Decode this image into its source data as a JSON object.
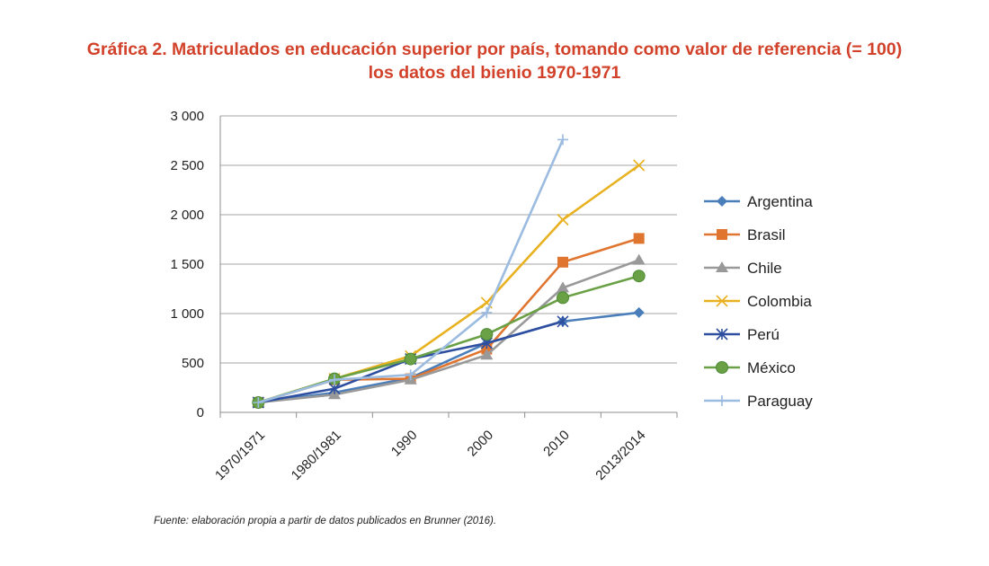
{
  "title_line1": "Gráfica 2. Matriculados en educación superior por país, tomando como valor de referencia (= 100)",
  "title_line2": "los datos del bienio 1970-1971",
  "footnote": "Fuente: elaboración propia a partir de datos publicados en Brunner (2016).",
  "chart_data": {
    "type": "line",
    "title": "Gráfica 2. Matriculados en educación superior por país, tomando como valor de referencia (= 100) los datos del bienio 1970-1971",
    "xlabel": "",
    "ylabel": "",
    "categories": [
      "1970/1971",
      "1980/1981",
      "1990",
      "2000",
      "2010",
      "2013/2014"
    ],
    "ylim": [
      0,
      3000
    ],
    "yticks": [
      0,
      500,
      1000,
      1500,
      2000,
      2500,
      3000
    ],
    "ytick_labels": [
      "0",
      "500",
      "1 000",
      "1 500",
      "2 000",
      "2 500",
      "3 000"
    ],
    "grid": true,
    "legend_position": "right",
    "series": [
      {
        "name": "Argentina",
        "color": "#4a7ebb",
        "marker": "diamond",
        "values": [
          100,
          200,
          350,
          700,
          920,
          1010
        ]
      },
      {
        "name": "Brasil",
        "color": "#e07530",
        "marker": "square",
        "values": [
          100,
          330,
          340,
          640,
          1520,
          1760
        ]
      },
      {
        "name": "Chile",
        "color": "#999999",
        "marker": "triangle",
        "values": [
          100,
          180,
          330,
          580,
          1260,
          1540
        ]
      },
      {
        "name": "Colombia",
        "color": "#e8b120",
        "marker": "x",
        "values": [
          100,
          340,
          570,
          1110,
          1950,
          2500
        ]
      },
      {
        "name": "Perú",
        "color": "#2e4fa0",
        "marker": "star",
        "values": [
          100,
          240,
          540,
          700,
          920,
          null
        ]
      },
      {
        "name": "México",
        "color": "#6aa046",
        "marker": "circle",
        "values": [
          100,
          340,
          540,
          790,
          1160,
          1380
        ]
      },
      {
        "name": "Paraguay",
        "color": "#9bbbe0",
        "marker": "plus",
        "values": [
          100,
          330,
          380,
          1010,
          2760,
          null
        ]
      }
    ]
  }
}
